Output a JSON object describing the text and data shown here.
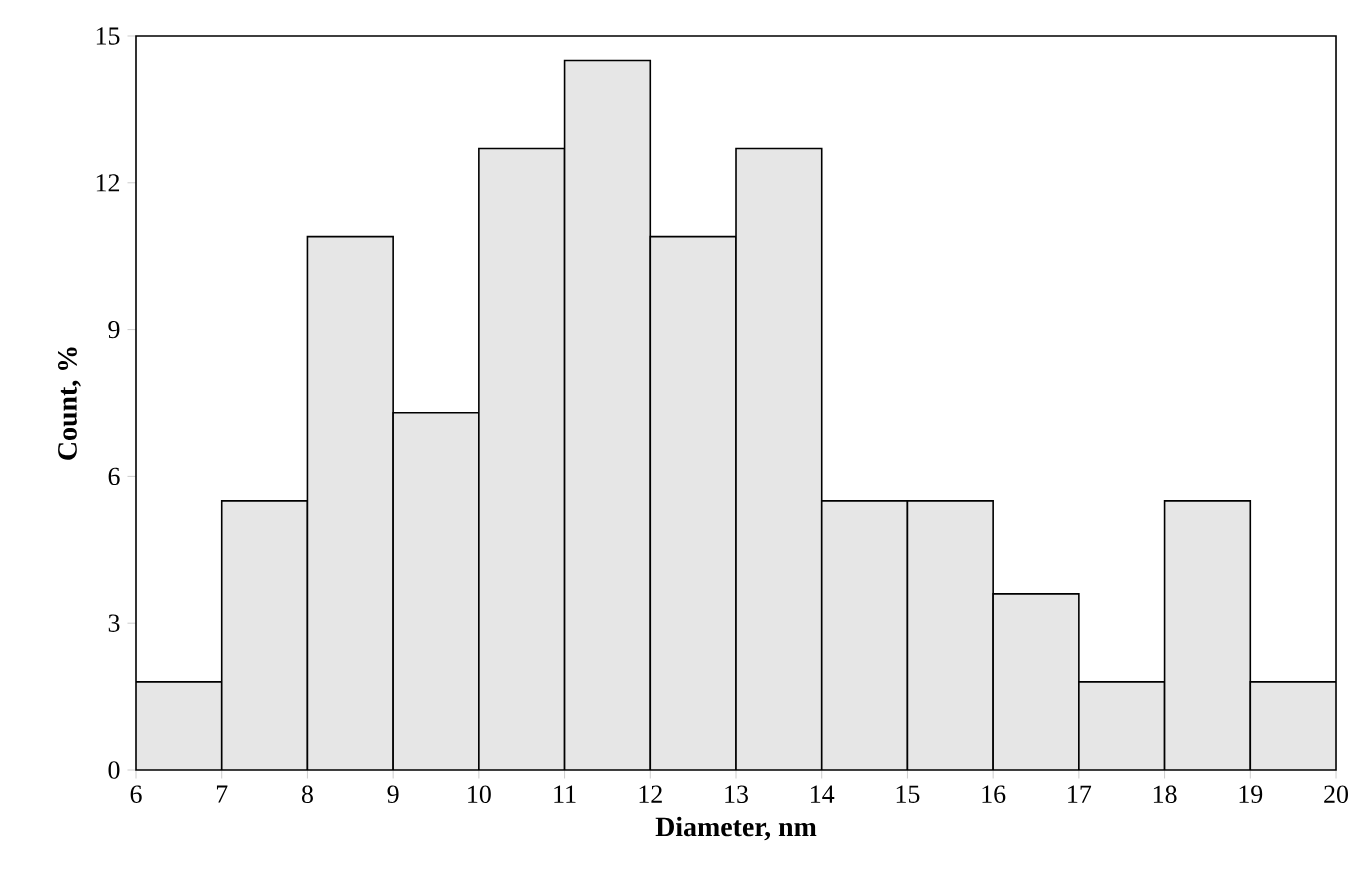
{
  "chart_data": {
    "type": "histogram",
    "xlabel": "Diameter, nm",
    "ylabel": "Count, %",
    "bins": [
      6,
      7,
      8,
      9,
      10,
      11,
      12,
      13,
      14,
      15,
      16,
      17,
      18,
      19,
      20
    ],
    "values": [
      1.8,
      5.5,
      10.9,
      7.3,
      12.7,
      14.5,
      10.9,
      12.7,
      5.5,
      5.5,
      3.6,
      1.8,
      5.5,
      1.8
    ],
    "color": "#e6e6e6",
    "xlim": [
      6,
      20
    ],
    "xticks": [
      6,
      7,
      8,
      9,
      10,
      11,
      12,
      13,
      14,
      15,
      16,
      17,
      18,
      19,
      20
    ],
    "ylim": [
      0,
      15
    ],
    "yticks": [
      0,
      3,
      6,
      9,
      12,
      15
    ],
    "grid": false
  }
}
